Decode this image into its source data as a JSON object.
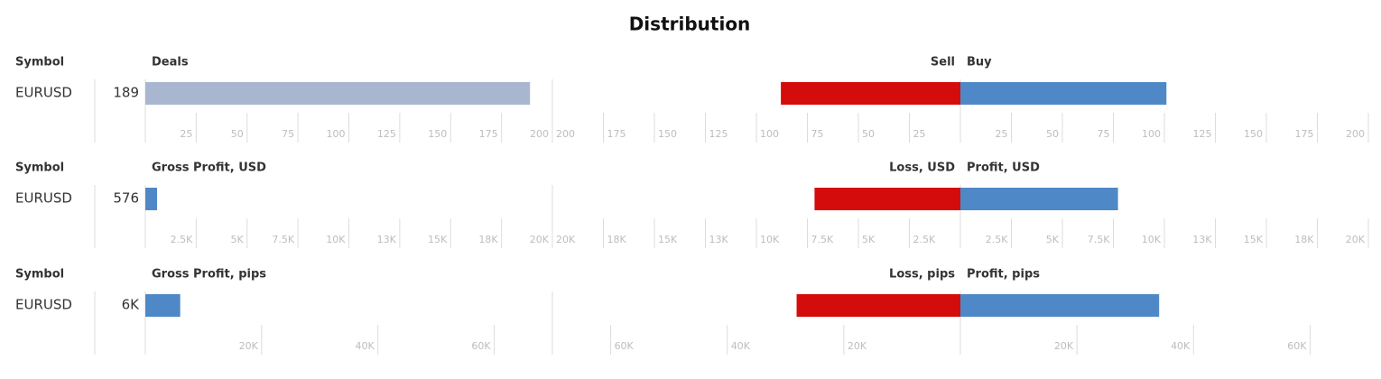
{
  "title": "Distribution",
  "chart_data": [
    {
      "type": "bar",
      "orientation": "horizontal",
      "category_header": "Symbol",
      "categories": [
        "EURUSD"
      ],
      "panels": [
        {
          "title": "Deals",
          "values": [
            189
          ],
          "color": "#a9b6d0",
          "xlim": [
            0,
            200
          ],
          "xticks": [
            25,
            50,
            75,
            100,
            125,
            150,
            175,
            200
          ]
        },
        {
          "title": "Sell",
          "values": [
            88
          ],
          "color": "#d40c0c",
          "xlim": [
            200,
            0
          ],
          "xticks": [
            25,
            50,
            75,
            100,
            125,
            150,
            175,
            200
          ]
        },
        {
          "title": "Buy",
          "values": [
            101
          ],
          "color": "#4f88c6",
          "xlim": [
            0,
            200
          ],
          "xticks": [
            25,
            50,
            75,
            100,
            125,
            150,
            175,
            200
          ]
        }
      ]
    },
    {
      "type": "bar",
      "orientation": "horizontal",
      "category_header": "Symbol",
      "categories": [
        "EURUSD"
      ],
      "panels": [
        {
          "title": "Gross Profit, USD",
          "values": [
            576
          ],
          "color": "#4f88c6",
          "xlim": [
            0,
            20000
          ],
          "xticks": [
            {
              "value": 2500,
              "label": "2.5K"
            },
            {
              "value": 5000,
              "label": "5K"
            },
            {
              "value": 7500,
              "label": "7.5K"
            },
            {
              "value": 10000,
              "label": "10K"
            },
            {
              "value": 12500,
              "label": "13K"
            },
            {
              "value": 15000,
              "label": "15K"
            },
            {
              "value": 17500,
              "label": "18K"
            },
            {
              "value": 20000,
              "label": "20K"
            }
          ]
        },
        {
          "title": "Loss, USD",
          "values": [
            7150
          ],
          "color": "#d40c0c",
          "xlim": [
            20000,
            0
          ],
          "xticks": [
            {
              "value": 2500,
              "label": "2.5K"
            },
            {
              "value": 5000,
              "label": "5K"
            },
            {
              "value": 7500,
              "label": "7.5K"
            },
            {
              "value": 10000,
              "label": "10K"
            },
            {
              "value": 12500,
              "label": "13K"
            },
            {
              "value": 15000,
              "label": "15K"
            },
            {
              "value": 17500,
              "label": "18K"
            },
            {
              "value": 20000,
              "label": "20K"
            }
          ]
        },
        {
          "title": "Profit, USD",
          "values": [
            7725
          ],
          "color": "#4f88c6",
          "xlim": [
            0,
            20000
          ],
          "xticks": [
            {
              "value": 2500,
              "label": "2.5K"
            },
            {
              "value": 5000,
              "label": "5K"
            },
            {
              "value": 7500,
              "label": "7.5K"
            },
            {
              "value": 10000,
              "label": "10K"
            },
            {
              "value": 12500,
              "label": "13K"
            },
            {
              "value": 15000,
              "label": "15K"
            },
            {
              "value": 17500,
              "label": "18K"
            },
            {
              "value": 20000,
              "label": "20K"
            }
          ]
        }
      ]
    },
    {
      "type": "bar",
      "orientation": "horizontal",
      "category_header": "Symbol",
      "categories": [
        "EURUSD"
      ],
      "panels": [
        {
          "title": "Gross Profit, pips",
          "values": [
            6000
          ],
          "value_labels": [
            "6K"
          ],
          "color": "#4f88c6",
          "xlim": [
            0,
            70000
          ],
          "xticks": [
            {
              "value": 20000,
              "label": "20K"
            },
            {
              "value": 40000,
              "label": "40K"
            },
            {
              "value": 60000,
              "label": "60K"
            }
          ]
        },
        {
          "title": "Loss, pips",
          "values": [
            28100
          ],
          "color": "#d40c0c",
          "xlim": [
            70000,
            0
          ],
          "xticks": [
            {
              "value": 20000,
              "label": "20K"
            },
            {
              "value": 40000,
              "label": "40K"
            },
            {
              "value": 60000,
              "label": "60K"
            }
          ]
        },
        {
          "title": "Profit, pips",
          "values": [
            34100
          ],
          "color": "#4f88c6",
          "xlim": [
            0,
            70000
          ],
          "xticks": [
            {
              "value": 20000,
              "label": "20K"
            },
            {
              "value": 40000,
              "label": "40K"
            },
            {
              "value": 60000,
              "label": "60K"
            }
          ]
        }
      ]
    }
  ]
}
